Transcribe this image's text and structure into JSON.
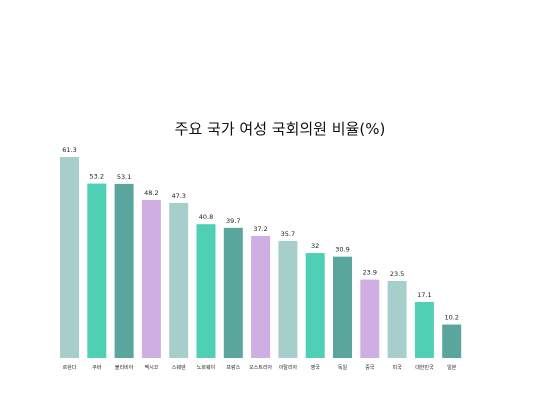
{
  "chart_data": {
    "type": "bar",
    "title": "주요 국가 여성 국회의원 비율(%)",
    "categories": [
      "르완다",
      "쿠바",
      "볼리비아",
      "멕시코",
      "스웨덴",
      "노르웨이",
      "프랑스",
      "오스트리아",
      "이탈리아",
      "영국",
      "독일",
      "중국",
      "미국",
      "대한민국",
      "일본"
    ],
    "values": [
      61.3,
      53.2,
      53.1,
      48.2,
      47.3,
      40.8,
      39.7,
      37.2,
      35.7,
      32,
      30.9,
      23.9,
      23.5,
      17.1,
      10.2
    ],
    "value_labels": [
      "61.3",
      "53.2",
      "53.1",
      "48.2",
      "47.3",
      "40.8",
      "39.7",
      "37.2",
      "35.7",
      "32",
      "30.9",
      "23.9",
      "23.5",
      "17.1",
      "10.2"
    ],
    "bar_colors": [
      "#a6cfcc",
      "#4fcfb4",
      "#5aa69c",
      "#cfaee3",
      "#a6cfcc",
      "#4fcfb4",
      "#5aa69c",
      "#cfaee3",
      "#a6cfcc",
      "#4fcfb4",
      "#5aa69c",
      "#cfaee3",
      "#a6cfcc",
      "#4fcfb4",
      "#5aa69c"
    ],
    "ylim": [
      0,
      61.3
    ],
    "grid": false,
    "legend": "none"
  }
}
